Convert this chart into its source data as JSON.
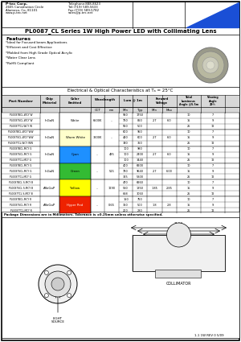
{
  "title": "PL0087_CL Series 1W High Power LED with Collimating Lens",
  "company_line1": "P-tec Corp.",
  "company_line2": "2605 Constitution Circle",
  "company_line3": "Alamosa, Co, 81101",
  "company_line4": "www.p-tec.net",
  "tel_line1": "Telephone:888-8623",
  "tel_line2": "Tel:(719) 589-5633",
  "tel_line3": "Fax:(719) 589-5782",
  "tel_line4": "sales@p-tec.net",
  "features_title": "Features",
  "features": [
    "*Ideal for Focused beam Applications",
    "*Efficient and Cost Effective",
    "*Molded from High Grade Optical Acrylic",
    "*Water Clear Lens",
    "*RoHS Compliant"
  ],
  "table_title": "Electrical & Optical Characteristics at Tₐ = 25°C",
  "hdr1": [
    "Part Number",
    "Chip\nMaterial",
    "Color Emitted",
    "Wavelength",
    "Lum @ 1m",
    "Forward\nVoltage",
    "Total\nLuminous\nAngle @5.5m",
    "Viewing\nAngle\n2θ½"
  ],
  "hdr2_wavelength": [
    "CCT",
    "nm"
  ],
  "hdr2_lum": [
    "Min",
    "Typ"
  ],
  "hdr2_vf": [
    "Min",
    "Max"
  ],
  "part_numbers": [
    [
      "PL0087BCL-WCY W",
      "PL0087SCL-WCY W",
      "PL0087TCL-WCY W"
    ],
    [
      "PL0087BCL-WCY WW",
      "PL0087SCL-WCY WW",
      "PL0087TCL-WCY WW"
    ],
    [
      "PL0087BCL-MCY G",
      "PL0087SCL-MCY G",
      "PL0087TCL-MCY G"
    ],
    [
      "PL0087BCL-MCY G",
      "PL0087SCL-MCY G",
      "PL0087TCL-MCY G"
    ],
    [
      "PL0087BCL S-MCY B",
      "PL0087SCL S-MCY B",
      "PL0087TCL S-MCY B"
    ],
    [
      "PL0087BCL-MCY R",
      "PL0087SCL-MCY R",
      "PL0087TCL-MCY R"
    ]
  ],
  "chips": [
    "InGaN",
    "InGaN",
    "InGaN",
    "InGaN",
    "AlInGaP",
    "AlInGaP"
  ],
  "colors": [
    "White",
    "Warm White",
    "Cyan",
    "Green",
    "Yellow",
    "Hyper Red"
  ],
  "color_bgs": [
    "#ffffff",
    "#ffffcc",
    "#1e90ff",
    "#33bb33",
    "#ffff00",
    "#ee2200"
  ],
  "color_text": [
    "black",
    "black",
    "black",
    "black",
    "black",
    "white"
  ],
  "cct": [
    "6500K",
    "3200K",
    "...",
    "...",
    "...",
    "..."
  ],
  "nm": [
    "...",
    "...",
    "485",
    "515",
    "1290",
    "0.65"
  ],
  "lum_min": [
    [
      "950",
      "750",
      "550"
    ],
    [
      "600",
      "420",
      "340"
    ],
    [
      "100",
      "100",
      "100"
    ],
    [
      "400",
      "780",
      "325"
    ],
    [
      "470",
      "530",
      "688"
    ],
    [
      "150",
      "350",
      "200"
    ]
  ],
  "lum_typ": [
    [
      "1750",
      "850",
      "500"
    ],
    [
      "950",
      "600",
      "350"
    ],
    [
      "980",
      "2400",
      "1440"
    ],
    [
      "6900",
      "9640",
      "5300"
    ],
    [
      "6960",
      "1850",
      "3060"
    ],
    [
      "750",
      "500",
      "280"
    ]
  ],
  "vf_min": [
    "2.7",
    "2.7",
    "2.7",
    "2.7",
    "1.85",
    "1.8"
  ],
  "vf_max": [
    "6.0",
    "6.0",
    "6.0",
    "6.00",
    "2.85",
    "2.8"
  ],
  "angles": [
    [
      "10",
      "15",
      "25"
    ],
    [
      "10",
      "15",
      "25"
    ],
    [
      "10",
      "15",
      "25"
    ],
    [
      "10",
      "15",
      "25"
    ],
    [
      "10",
      "15",
      "25"
    ],
    [
      "10",
      "15",
      "25"
    ]
  ],
  "viewings": [
    [
      "7",
      "9",
      "12"
    ],
    [
      "7",
      "9",
      "12"
    ],
    [
      "7",
      "9",
      "12"
    ],
    [
      "7",
      "9",
      "12"
    ],
    [
      "7",
      "9",
      "12"
    ],
    [
      "7",
      "9",
      "12"
    ]
  ],
  "note": "Package Dimensions are in Millimeters. Tolerance is ±0.25mm unless otherwise specified.",
  "dim1": "21.50",
  "dim2": "20.02",
  "dim3": "17.50",
  "diag_label1": "LIGHT\nSOURCE",
  "diag_label2": "COLLIMATOR",
  "footer": "1-1 1W REV 0 5/09"
}
